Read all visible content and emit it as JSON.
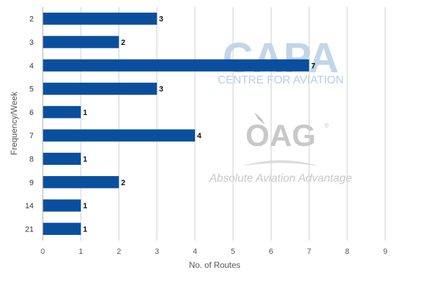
{
  "chart_data": {
    "type": "bar",
    "orientation": "horizontal",
    "categories": [
      "2",
      "3",
      "4",
      "5",
      "6",
      "7",
      "8",
      "9",
      "14",
      "21"
    ],
    "values": [
      3,
      2,
      7,
      3,
      1,
      4,
      1,
      2,
      1,
      1
    ],
    "data_labels": [
      "3",
      "2",
      "7",
      "3",
      "1",
      "4",
      "1",
      "2",
      "1",
      "1"
    ],
    "xlabel": "No. of Routes",
    "ylabel": "Frequency/Week",
    "xlim": [
      0,
      9
    ],
    "xticks": [
      "0",
      "1",
      "2",
      "3",
      "4",
      "5",
      "6",
      "7",
      "8",
      "9"
    ],
    "grid": "vertical",
    "bar_color": "#0a4f9e"
  },
  "watermarks": {
    "capa_logo": "CAPA",
    "capa_tagline": "CENTRE FOR AVIATION",
    "oag_logo": "OAG",
    "oag_registered": "®",
    "oag_tagline": "Absolute Aviation Advantage",
    "capa_color": "#b8cfe6",
    "oag_color": "#c8c8c8"
  }
}
